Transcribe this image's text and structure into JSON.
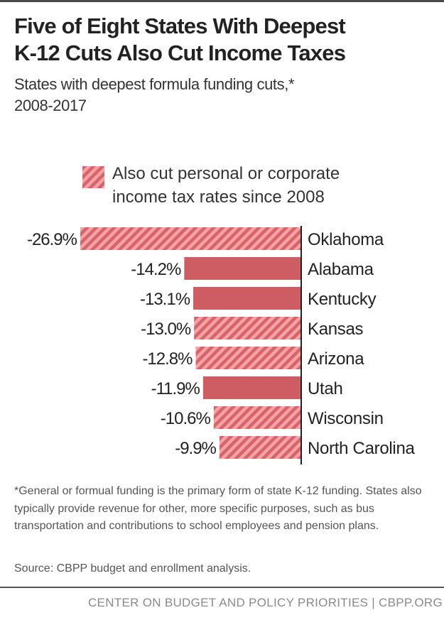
{
  "header": {
    "title_line1": "Five of Eight States With Deepest",
    "title_line2": "K-12 Cuts Also Cut Income Taxes",
    "subtitle_line1": "States with deepest formula funding cuts,*",
    "subtitle_line2": "2008-2017"
  },
  "legend": {
    "line1": "Also cut personal or corporate",
    "line2": "income tax rates since 2008"
  },
  "colors": {
    "bar_solid": "#cd5c63",
    "hatch_light": "#f5a3a6",
    "hatch_dark": "#d8646a",
    "axis": "#222222",
    "text": "#222222"
  },
  "chart_data": {
    "type": "bar",
    "orientation": "horizontal",
    "title": "Five of Eight States With Deepest K-12 Cuts Also Cut Income Taxes",
    "subtitle": "States with deepest formula funding cuts,* 2008-2017",
    "xlabel": "",
    "ylabel": "",
    "xlim": [
      -27,
      0
    ],
    "grid": false,
    "legend_position": "top",
    "legend": [
      {
        "label": "Also cut personal or corporate income tax rates since 2008",
        "style": "hatched"
      }
    ],
    "categories": [
      "Oklahoma",
      "Alabama",
      "Kentucky",
      "Kansas",
      "Arizona",
      "Utah",
      "Wisconsin",
      "North Carolina"
    ],
    "values": [
      -26.9,
      -14.2,
      -13.1,
      -13.0,
      -12.8,
      -11.9,
      -10.6,
      -9.9
    ],
    "labels": [
      "-26.9%",
      "-14.2%",
      "-13.1%",
      "-13.0%",
      "-12.8%",
      "-11.9%",
      "-10.6%",
      "-9.9%"
    ],
    "cut_income_taxes": [
      true,
      false,
      false,
      true,
      true,
      false,
      true,
      true
    ]
  },
  "notes": {
    "footnote": "*General or formual funding is the primary form of state K-12 funding. States also typically provide revenue for other, more specific purposes, such as bus transportation and contributions to school employees and pension plans.",
    "source": "Source: CBPP budget and enrollment analysis."
  },
  "footer": {
    "credit": "CENTER ON BUDGET AND POLICY PRIORITIES | CBPP.ORG"
  }
}
